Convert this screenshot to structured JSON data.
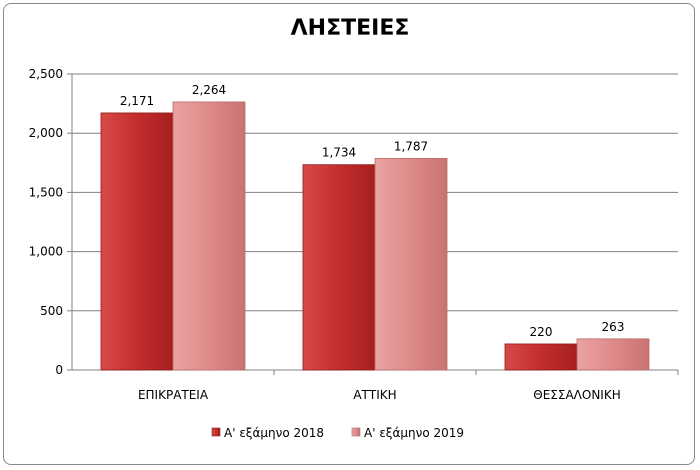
{
  "chart_data": {
    "type": "bar",
    "title": "ΛΗΣΤΕΙΕΣ",
    "categories": [
      "ΕΠΙΚΡΑΤΕΙΑ",
      "ΑΤΤΙΚΗ",
      "ΘΕΣΣΑΛΟΝΙΚΗ"
    ],
    "series": [
      {
        "name": "Α' εξάμηνο 2018",
        "values": [
          2171,
          1734,
          220
        ],
        "labels": [
          "2,171",
          "1,734",
          "220"
        ],
        "color": "#c8302f"
      },
      {
        "name": "Α' εξάμηνο 2019",
        "values": [
          2264,
          1787,
          263
        ],
        "labels": [
          "2,264",
          "1,787",
          "263"
        ],
        "color": "#e08e8e"
      }
    ],
    "ylim": [
      0,
      2500
    ],
    "yticks": [
      0,
      500,
      1000,
      1500,
      2000,
      2500
    ],
    "ytick_labels": [
      "0",
      "500",
      "1,000",
      "1,500",
      "2,000",
      "2,500"
    ],
    "grid": true,
    "legend_position": "bottom"
  }
}
